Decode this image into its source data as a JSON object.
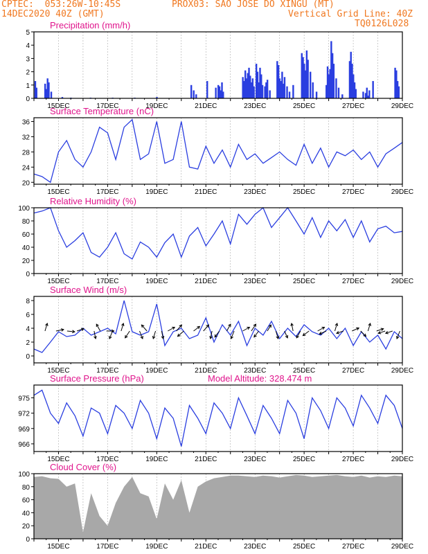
{
  "header": {
    "line1_left": "CPTEC:  053:26W-10:45S",
    "line1_right": "PROX03: SAO JOSE DO XINGU (MT)",
    "line2_left": "14DEC2020 40Z (GMT)",
    "line2_right": "Vertical Grid Line: 40Z",
    "line3_right": "TQ0126L028"
  },
  "colors": {
    "header": "#f07820",
    "title": "#e0148c",
    "line": "#2a3ee0",
    "precip_bar": "#2a3ee0",
    "cloud": "#a8a8a8",
    "grid": "#999999"
  },
  "x_ticks": [
    "15DEC",
    "17DEC",
    "19DEC",
    "21DEC",
    "23DEC",
    "25DEC",
    "27DEC",
    "29DEC"
  ],
  "x_range_days": [
    14.0,
    29.0
  ],
  "chart_data": [
    {
      "type": "bar",
      "title": "Precipitation (mm/h)",
      "ylim": [
        0,
        5
      ],
      "yticks": [
        0,
        1,
        2,
        3,
        4,
        5
      ],
      "x": [
        14.05,
        14.1,
        14.45,
        14.5,
        14.55,
        14.6,
        14.7,
        15.15,
        15.5,
        16.3,
        17.2,
        18.1,
        19.0,
        20.4,
        20.5,
        20.6,
        21.05,
        21.4,
        21.5,
        21.55,
        21.6,
        21.65,
        21.7,
        22.5,
        22.55,
        22.6,
        22.65,
        22.7,
        22.75,
        22.8,
        22.85,
        22.9,
        22.95,
        23.05,
        23.1,
        23.15,
        23.2,
        23.25,
        23.3,
        23.4,
        23.45,
        23.5,
        23.6,
        23.9,
        23.95,
        24.0,
        24.05,
        24.1,
        24.15,
        24.2,
        24.3,
        24.4,
        24.55,
        24.9,
        24.95,
        25.0,
        25.05,
        25.1,
        25.15,
        25.25,
        25.35,
        25.5,
        25.9,
        25.95,
        26.0,
        26.05,
        26.1,
        26.15,
        26.2,
        26.3,
        26.4,
        26.55,
        26.85,
        26.9,
        26.95,
        27.0,
        27.05,
        27.1,
        27.4,
        27.5,
        27.55,
        27.6,
        27.65,
        27.8,
        28.7,
        28.75,
        28.8,
        28.85
      ],
      "values": [
        1.3,
        0.8,
        1.1,
        0.7,
        1.5,
        1.2,
        0.5,
        0.1,
        0.05,
        0.05,
        0.05,
        0.05,
        0.1,
        1.0,
        0.6,
        0.3,
        1.3,
        0.8,
        1.0,
        0.9,
        0.6,
        1.2,
        0.5,
        1.6,
        1.3,
        2.1,
        1.5,
        1.9,
        2.3,
        1.7,
        1.2,
        1.5,
        0.9,
        2.6,
        2.0,
        1.2,
        2.3,
        1.8,
        1.0,
        0.9,
        1.2,
        1.4,
        0.6,
        2.8,
        2.5,
        1.5,
        1.3,
        2.0,
        1.1,
        1.6,
        0.9,
        0.5,
        1.0,
        3.4,
        3.1,
        2.6,
        2.1,
        3.6,
        2.9,
        2.0,
        1.2,
        0.5,
        1.0,
        2.4,
        1.8,
        2.2,
        4.3,
        3.4,
        2.6,
        1.5,
        0.8,
        0.3,
        2.8,
        3.5,
        2.6,
        1.8,
        1.2,
        0.7,
        0.5,
        0.4,
        0.8,
        0.2,
        0.6,
        1.3,
        2.3,
        2.1,
        1.3,
        0.9
      ]
    },
    {
      "type": "line",
      "title": "Surface Temperature (nC)",
      "ylim": [
        19.5,
        37.0
      ],
      "yticks": [
        20,
        24,
        28,
        32,
        36
      ],
      "x": [
        14.0,
        14.33,
        14.67,
        15.0,
        15.33,
        15.67,
        16.0,
        16.33,
        16.67,
        17.0,
        17.33,
        17.67,
        18.0,
        18.33,
        18.67,
        19.0,
        19.33,
        19.67,
        20.0,
        20.33,
        20.67,
        21.0,
        21.33,
        21.67,
        22.0,
        22.33,
        22.67,
        23.0,
        23.33,
        23.67,
        24.0,
        24.33,
        24.67,
        25.0,
        25.33,
        25.67,
        26.0,
        26.33,
        26.67,
        27.0,
        27.33,
        27.67,
        28.0,
        28.33,
        28.67,
        29.0
      ],
      "values": [
        22.2,
        21.5,
        20.0,
        28.0,
        31.0,
        26.0,
        24.0,
        28.0,
        34.5,
        33.0,
        26.0,
        34.5,
        36.5,
        26.0,
        27.5,
        36.0,
        25.0,
        26.0,
        36.0,
        24.0,
        23.5,
        29.5,
        25.0,
        28.5,
        24.0,
        30.0,
        26.0,
        27.5,
        25.0,
        26.5,
        28.0,
        26.0,
        24.5,
        30.0,
        25.0,
        29.0,
        24.0,
        28.0,
        27.0,
        28.5,
        26.0,
        28.0,
        24.0,
        27.5,
        29.0,
        30.5
      ]
    },
    {
      "type": "line",
      "title": "Relative Humidity (%)",
      "ylim": [
        0,
        100
      ],
      "yticks": [
        0,
        20,
        40,
        60,
        80,
        100
      ],
      "x": [
        14.0,
        14.33,
        14.67,
        15.0,
        15.33,
        15.67,
        16.0,
        16.33,
        16.67,
        17.0,
        17.33,
        17.67,
        18.0,
        18.33,
        18.67,
        19.0,
        19.33,
        19.67,
        20.0,
        20.33,
        20.67,
        21.0,
        21.33,
        21.67,
        22.0,
        22.33,
        22.67,
        23.0,
        23.33,
        23.67,
        24.0,
        24.33,
        24.67,
        25.0,
        25.33,
        25.67,
        26.0,
        26.33,
        26.67,
        27.0,
        27.33,
        27.67,
        28.0,
        28.33,
        28.67,
        29.0
      ],
      "values": [
        92,
        95,
        100,
        65,
        40,
        50,
        62,
        32,
        25,
        40,
        62,
        30,
        22,
        48,
        40,
        25,
        47,
        60,
        25,
        57,
        70,
        42,
        60,
        80,
        45,
        90,
        75,
        90,
        100,
        70,
        85,
        100,
        80,
        60,
        85,
        55,
        80,
        65,
        82,
        55,
        80,
        48,
        68,
        72,
        62,
        64
      ]
    },
    {
      "type": "line",
      "title": "Surface Wind (m/s)",
      "ylim": [
        -1,
        8.6
      ],
      "yticks": [
        0,
        2,
        4,
        6,
        8
      ],
      "x": [
        14.0,
        14.33,
        14.67,
        15.0,
        15.33,
        15.67,
        16.0,
        16.33,
        16.67,
        17.0,
        17.33,
        17.67,
        18.0,
        18.33,
        18.67,
        19.0,
        19.33,
        19.67,
        20.0,
        20.33,
        20.67,
        21.0,
        21.33,
        21.67,
        22.0,
        22.33,
        22.67,
        23.0,
        23.33,
        23.67,
        24.0,
        24.33,
        24.67,
        25.0,
        25.33,
        25.67,
        26.0,
        26.33,
        26.67,
        27.0,
        27.33,
        27.67,
        28.0,
        28.33,
        28.67,
        29.0
      ],
      "values": [
        1.0,
        0.5,
        2.0,
        3.5,
        2.8,
        3.0,
        4.0,
        3.0,
        3.5,
        4.0,
        3.2,
        8.0,
        3.5,
        3.0,
        3.5,
        7.5,
        1.5,
        3.5,
        4.0,
        2.5,
        3.0,
        5.5,
        2.0,
        4.5,
        3.0,
        5.0,
        1.5,
        4.0,
        3.0,
        5.0,
        2.5,
        4.0,
        2.8,
        4.5,
        3.5,
        3.0,
        4.0,
        2.5,
        4.0,
        1.5,
        3.5,
        2.0,
        3.0,
        1.0,
        3.5,
        2.5
      ]
    },
    {
      "type": "line",
      "title": "Surface Pressure (hPa)",
      "annotation": "Model Altitude: 328.474 m",
      "ylim": [
        964.5,
        977.5
      ],
      "yticks": [
        966,
        969,
        972,
        975
      ],
      "x": [
        14.0,
        14.33,
        14.67,
        15.0,
        15.33,
        15.67,
        16.0,
        16.33,
        16.67,
        17.0,
        17.33,
        17.67,
        18.0,
        18.33,
        18.67,
        19.0,
        19.33,
        19.67,
        20.0,
        20.33,
        20.67,
        21.0,
        21.33,
        21.67,
        22.0,
        22.33,
        22.67,
        23.0,
        23.33,
        23.67,
        24.0,
        24.33,
        24.67,
        25.0,
        25.33,
        25.67,
        26.0,
        26.33,
        26.67,
        27.0,
        27.33,
        27.67,
        28.0,
        28.33,
        28.67,
        29.0
      ],
      "values": [
        975.5,
        976.5,
        972.0,
        970.0,
        974.0,
        971.5,
        967.5,
        973.0,
        972.0,
        968.0,
        973.5,
        972.0,
        969.0,
        974.5,
        972.0,
        967.0,
        973.0,
        971.0,
        965.5,
        973.5,
        971.0,
        968.0,
        974.0,
        972.0,
        969.0,
        975.0,
        971.5,
        968.0,
        973.5,
        971.0,
        968.0,
        974.5,
        972.0,
        967.0,
        975.0,
        972.5,
        969.0,
        975.0,
        973.0,
        969.5,
        975.5,
        973.0,
        970.0,
        975.5,
        973.5,
        969.0
      ]
    },
    {
      "type": "area",
      "title": "Cloud Cover (%)",
      "ylim": [
        0,
        100
      ],
      "yticks": [
        0,
        20,
        40,
        60,
        80,
        100
      ],
      "x": [
        14.0,
        14.33,
        14.67,
        15.0,
        15.33,
        15.67,
        16.0,
        16.33,
        16.67,
        17.0,
        17.33,
        17.67,
        18.0,
        18.33,
        18.67,
        19.0,
        19.33,
        19.67,
        20.0,
        20.33,
        20.67,
        21.0,
        21.33,
        21.67,
        22.0,
        22.33,
        22.67,
        23.0,
        23.33,
        23.67,
        24.0,
        24.33,
        24.67,
        25.0,
        25.33,
        25.67,
        26.0,
        26.33,
        26.67,
        27.0,
        27.33,
        27.67,
        28.0,
        28.33,
        28.67,
        29.0
      ],
      "values": [
        95,
        96,
        93,
        92,
        80,
        85,
        10,
        70,
        35,
        20,
        55,
        80,
        95,
        70,
        65,
        30,
        85,
        60,
        90,
        40,
        80,
        88,
        93,
        95,
        97,
        97,
        96,
        95,
        97,
        96,
        94,
        96,
        98,
        97,
        95,
        96,
        97,
        98,
        96,
        95,
        97,
        94,
        96,
        95,
        97,
        96
      ]
    }
  ],
  "wind_arrows": [
    {
      "x": 14.45,
      "u": 0.3,
      "v": 1
    },
    {
      "x": 14.9,
      "u": 1,
      "v": 0.2
    },
    {
      "x": 15.35,
      "u": 1,
      "v": -0.1
    },
    {
      "x": 15.75,
      "u": 0.9,
      "v": 0.3
    },
    {
      "x": 16.45,
      "u": 0.2,
      "v": -1
    },
    {
      "x": 16.7,
      "u": -0.5,
      "v": 0.9
    },
    {
      "x": 16.95,
      "u": 1,
      "v": 0
    },
    {
      "x": 17.2,
      "u": -0.4,
      "v": -1
    },
    {
      "x": 17.55,
      "u": 0.3,
      "v": 1
    },
    {
      "x": 17.9,
      "u": -0.6,
      "v": -0.9
    },
    {
      "x": 18.3,
      "u": 0.4,
      "v": -1
    },
    {
      "x": 18.6,
      "u": -0.7,
      "v": 0.8
    },
    {
      "x": 18.95,
      "u": -0.3,
      "v": -1
    },
    {
      "x": 19.2,
      "u": 0.2,
      "v": -1
    },
    {
      "x": 19.45,
      "u": 0.9,
      "v": 0.5
    },
    {
      "x": 19.8,
      "u": 0.7,
      "v": 0.8
    },
    {
      "x": 20.1,
      "u": -0.8,
      "v": -0.7
    },
    {
      "x": 20.5,
      "u": 0.8,
      "v": 0.6
    },
    {
      "x": 20.9,
      "u": 0.7,
      "v": 0.8
    },
    {
      "x": 21.25,
      "u": -0.2,
      "v": -1
    },
    {
      "x": 21.55,
      "u": -0.6,
      "v": -0.8
    },
    {
      "x": 21.85,
      "u": 0.5,
      "v": 0.9
    },
    {
      "x": 22.15,
      "u": -0.4,
      "v": -1
    },
    {
      "x": 22.5,
      "u": 0.9,
      "v": 0.5
    },
    {
      "x": 22.85,
      "u": 0.6,
      "v": 0.9
    },
    {
      "x": 23.15,
      "u": -0.6,
      "v": -0.8
    },
    {
      "x": 23.5,
      "u": 0.5,
      "v": 0.8
    },
    {
      "x": 23.85,
      "u": 0.3,
      "v": -1
    },
    {
      "x": 24.2,
      "u": 0.4,
      "v": -0.9
    },
    {
      "x": 24.55,
      "u": -0.2,
      "v": 1
    },
    {
      "x": 24.85,
      "u": -0.5,
      "v": -0.9
    },
    {
      "x": 25.2,
      "u": -0.8,
      "v": -0.6
    },
    {
      "x": 25.55,
      "u": 0.9,
      "v": 0.5
    },
    {
      "x": 25.9,
      "u": -0.9,
      "v": -0.4
    },
    {
      "x": 26.25,
      "u": 0.3,
      "v": 1
    },
    {
      "x": 26.6,
      "u": -0.9,
      "v": -0.3
    },
    {
      "x": 26.95,
      "u": 0.9,
      "v": 0.4
    },
    {
      "x": 27.3,
      "u": 0.7,
      "v": -0.7
    },
    {
      "x": 27.6,
      "u": 0.3,
      "v": 1
    },
    {
      "x": 27.95,
      "u": 0.9,
      "v": 0.3
    },
    {
      "x": 28.3,
      "u": -0.9,
      "v": -0.3
    },
    {
      "x": 28.6,
      "u": -0.9,
      "v": -0.3
    },
    {
      "x": 28.9,
      "u": -0.4,
      "v": -1
    }
  ]
}
